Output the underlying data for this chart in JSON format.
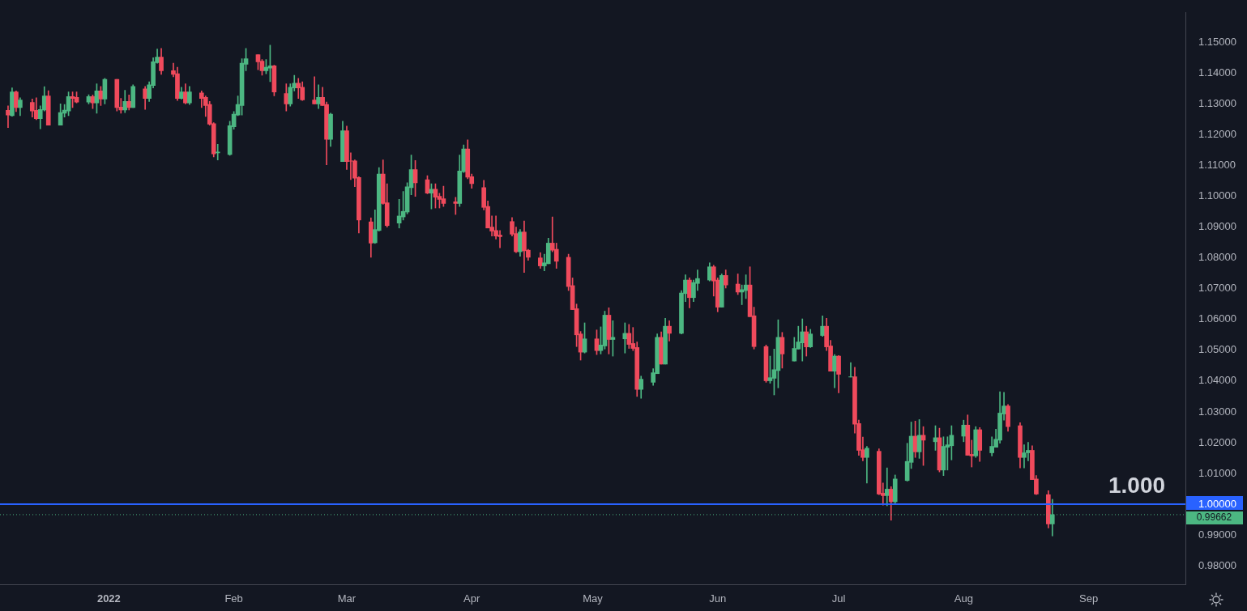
{
  "chart_data": {
    "type": "candlestick",
    "x": [
      "2021-12-07",
      "2021-12-08",
      "2021-12-09",
      "2021-12-10",
      "2021-12-13",
      "2021-12-14",
      "2021-12-15",
      "2021-12-16",
      "2021-12-17",
      "2021-12-20",
      "2021-12-21",
      "2021-12-22",
      "2021-12-23",
      "2021-12-24",
      "2021-12-27",
      "2021-12-28",
      "2021-12-29",
      "2021-12-30",
      "2021-12-31",
      "2022-01-03",
      "2022-01-04",
      "2022-01-05",
      "2022-01-06",
      "2022-01-07",
      "2022-01-10",
      "2022-01-11",
      "2022-01-12",
      "2022-01-13",
      "2022-01-14",
      "2022-01-17",
      "2022-01-18",
      "2022-01-19",
      "2022-01-20",
      "2022-01-21",
      "2022-01-24",
      "2022-01-25",
      "2022-01-26",
      "2022-01-27",
      "2022-01-28",
      "2022-01-31",
      "2022-02-01",
      "2022-02-02",
      "2022-02-03",
      "2022-02-04",
      "2022-02-07",
      "2022-02-08",
      "2022-02-09",
      "2022-02-10",
      "2022-02-11",
      "2022-02-14",
      "2022-02-15",
      "2022-02-16",
      "2022-02-17",
      "2022-02-18",
      "2022-02-21",
      "2022-02-22",
      "2022-02-23",
      "2022-02-24",
      "2022-02-25",
      "2022-02-28",
      "2022-03-01",
      "2022-03-02",
      "2022-03-03",
      "2022-03-04",
      "2022-03-07",
      "2022-03-08",
      "2022-03-09",
      "2022-03-10",
      "2022-03-11",
      "2022-03-14",
      "2022-03-15",
      "2022-03-16",
      "2022-03-17",
      "2022-03-18",
      "2022-03-21",
      "2022-03-22",
      "2022-03-23",
      "2022-03-24",
      "2022-03-25",
      "2022-03-28",
      "2022-03-29",
      "2022-03-30",
      "2022-03-31",
      "2022-04-01",
      "2022-04-04",
      "2022-04-05",
      "2022-04-06",
      "2022-04-07",
      "2022-04-08",
      "2022-04-11",
      "2022-04-12",
      "2022-04-13",
      "2022-04-14",
      "2022-04-15",
      "2022-04-18",
      "2022-04-19",
      "2022-04-20",
      "2022-04-21",
      "2022-04-22",
      "2022-04-25",
      "2022-04-26",
      "2022-04-27",
      "2022-04-28",
      "2022-04-29",
      "2022-05-02",
      "2022-05-03",
      "2022-05-04",
      "2022-05-05",
      "2022-05-06",
      "2022-05-09",
      "2022-05-10",
      "2022-05-11",
      "2022-05-12",
      "2022-05-13",
      "2022-05-16",
      "2022-05-17",
      "2022-05-18",
      "2022-05-19",
      "2022-05-20",
      "2022-05-23",
      "2022-05-24",
      "2022-05-25",
      "2022-05-26",
      "2022-05-27",
      "2022-05-30",
      "2022-05-31",
      "2022-06-01",
      "2022-06-02",
      "2022-06-03",
      "2022-06-06",
      "2022-06-07",
      "2022-06-08",
      "2022-06-09",
      "2022-06-10",
      "2022-06-13",
      "2022-06-14",
      "2022-06-15",
      "2022-06-16",
      "2022-06-17",
      "2022-06-20",
      "2022-06-21",
      "2022-06-22",
      "2022-06-23",
      "2022-06-24",
      "2022-06-27",
      "2022-06-28",
      "2022-06-29",
      "2022-06-30",
      "2022-07-01",
      "2022-07-04",
      "2022-07-05",
      "2022-07-06",
      "2022-07-07",
      "2022-07-08",
      "2022-07-11",
      "2022-07-12",
      "2022-07-13",
      "2022-07-14",
      "2022-07-15",
      "2022-07-18",
      "2022-07-19",
      "2022-07-20",
      "2022-07-21",
      "2022-07-22",
      "2022-07-25",
      "2022-07-26",
      "2022-07-27",
      "2022-07-28",
      "2022-07-29",
      "2022-08-01",
      "2022-08-02",
      "2022-08-03",
      "2022-08-04",
      "2022-08-05",
      "2022-08-08",
      "2022-08-09",
      "2022-08-10",
      "2022-08-11",
      "2022-08-12",
      "2022-08-15",
      "2022-08-16",
      "2022-08-17",
      "2022-08-18",
      "2022-08-19",
      "2022-08-22",
      "2022-08-23"
    ],
    "ohlc": [
      [
        1.1279,
        1.1294,
        1.1223,
        1.1264
      ],
      [
        1.1262,
        1.1352,
        1.126,
        1.1339
      ],
      [
        1.1339,
        1.1342,
        1.1275,
        1.1288
      ],
      [
        1.1288,
        1.132,
        1.1262,
        1.1313
      ],
      [
        1.1305,
        1.1316,
        1.1257,
        1.1277
      ],
      [
        1.1279,
        1.132,
        1.1249,
        1.1252
      ],
      [
        1.1252,
        1.1294,
        1.1219,
        1.1282
      ],
      [
        1.128,
        1.1356,
        1.1277,
        1.1326
      ],
      [
        1.1326,
        1.1343,
        1.1231,
        1.1231
      ],
      [
        1.1231,
        1.13,
        1.1231,
        1.1272
      ],
      [
        1.127,
        1.1298,
        1.1257,
        1.128
      ],
      [
        1.1277,
        1.1339,
        1.1262,
        1.1324
      ],
      [
        1.1324,
        1.1339,
        1.1288,
        1.1318
      ],
      [
        1.1321,
        1.1339,
        1.1303,
        1.1306
      ],
      [
        1.1306,
        1.133,
        1.13,
        1.1324
      ],
      [
        1.1324,
        1.1329,
        1.1285,
        1.1303
      ],
      [
        1.1303,
        1.1365,
        1.127,
        1.1342
      ],
      [
        1.1342,
        1.1357,
        1.1295,
        1.1316
      ],
      [
        1.1316,
        1.1383,
        1.13,
        1.138
      ],
      [
        1.138,
        1.138,
        1.1277,
        1.1288
      ],
      [
        1.129,
        1.1318,
        1.127,
        1.128
      ],
      [
        1.128,
        1.1344,
        1.1272,
        1.1308
      ],
      [
        1.1308,
        1.1329,
        1.128,
        1.1288
      ],
      [
        1.1288,
        1.1362,
        1.1288,
        1.1357
      ],
      [
        1.1349,
        1.1357,
        1.1282,
        1.1318
      ],
      [
        1.1318,
        1.1372,
        1.1308,
        1.1362
      ],
      [
        1.136,
        1.145,
        1.1352,
        1.1437
      ],
      [
        1.1434,
        1.1478,
        1.1432,
        1.1452
      ],
      [
        1.1452,
        1.148,
        1.1396,
        1.1408
      ],
      [
        1.1408,
        1.1432,
        1.1388,
        1.1396
      ],
      [
        1.1398,
        1.1419,
        1.1311,
        1.1318
      ],
      [
        1.1318,
        1.1354,
        1.1316,
        1.1339
      ],
      [
        1.1339,
        1.1365,
        1.13,
        1.1303
      ],
      [
        1.1303,
        1.1357,
        1.1298,
        1.1339
      ],
      [
        1.1336,
        1.1342,
        1.1288,
        1.1318
      ],
      [
        1.1321,
        1.1326,
        1.1259,
        1.1295
      ],
      [
        1.1298,
        1.1308,
        1.1231,
        1.1234
      ],
      [
        1.1236,
        1.1239,
        1.1128,
        1.1138
      ],
      [
        1.1141,
        1.1169,
        1.1118,
        1.1144
      ],
      [
        1.1136,
        1.1244,
        1.1133,
        1.1229
      ],
      [
        1.1226,
        1.1275,
        1.1218,
        1.1267
      ],
      [
        1.1264,
        1.1326,
        1.1262,
        1.1298
      ],
      [
        1.1295,
        1.1447,
        1.1264,
        1.1432
      ],
      [
        1.1429,
        1.148,
        1.1408,
        1.1447
      ],
      [
        1.146,
        1.146,
        1.1411,
        1.1437
      ],
      [
        1.1439,
        1.1444,
        1.1393,
        1.1408
      ],
      [
        1.1408,
        1.1444,
        1.1398,
        1.1419
      ],
      [
        1.1416,
        1.1491,
        1.1372,
        1.1424
      ],
      [
        1.1424,
        1.1426,
        1.1326,
        1.1339
      ],
      [
        1.1334,
        1.1365,
        1.1277,
        1.13
      ],
      [
        1.13,
        1.1365,
        1.1293,
        1.1354
      ],
      [
        1.1352,
        1.1393,
        1.1342,
        1.1367
      ],
      [
        1.1367,
        1.1383,
        1.1318,
        1.1352
      ],
      [
        1.1354,
        1.1372,
        1.1311,
        1.1313
      ],
      [
        1.1313,
        1.1388,
        1.13,
        1.13
      ],
      [
        1.13,
        1.1362,
        1.1285,
        1.1321
      ],
      [
        1.1321,
        1.1354,
        1.1295,
        1.1295
      ],
      [
        1.1298,
        1.1306,
        1.1102,
        1.1185
      ],
      [
        1.1185,
        1.127,
        1.1162,
        1.1267
      ],
      [
        1.1113,
        1.1244,
        1.1113,
        1.1213
      ],
      [
        1.1213,
        1.1228,
        1.1087,
        1.1113
      ],
      [
        1.1115,
        1.1141,
        1.1054,
        1.1114
      ],
      [
        1.1115,
        1.1118,
        1.1031,
        1.1059
      ],
      [
        1.1061,
        1.1064,
        1.0881,
        1.0923
      ],
      [
        1.0917,
        1.093,
        1.0802,
        1.0848
      ],
      [
        1.0849,
        1.0956,
        1.0847,
        1.0892
      ],
      [
        1.0889,
        1.1093,
        1.0887,
        1.1072
      ],
      [
        1.1072,
        1.1118,
        1.0974,
        1.0977
      ],
      [
        1.0979,
        1.1041,
        1.09,
        1.0905
      ],
      [
        1.0913,
        1.099,
        1.0897,
        1.0936
      ],
      [
        1.0933,
        1.1016,
        1.0923,
        1.0951
      ],
      [
        1.0949,
        1.1044,
        1.0943,
        1.1031
      ],
      [
        1.1028,
        1.1134,
        1.1005,
        1.1087
      ],
      [
        1.1087,
        1.1116,
        1.1,
        1.1044
      ],
      [
        1.1054,
        1.1067,
        1.1008,
        1.101
      ],
      [
        1.101,
        1.1041,
        1.0959,
        1.1023
      ],
      [
        1.1023,
        1.1041,
        1.0962,
        1.0997
      ],
      [
        1.1,
        1.101,
        1.0962,
        1.099
      ],
      [
        1.0992,
        1.1033,
        1.0967,
        1.0977
      ],
      [
        1.0982,
        1.0997,
        1.0941,
        1.0977
      ],
      [
        1.0977,
        1.1134,
        1.0967,
        1.1082
      ],
      [
        1.108,
        1.1167,
        1.1077,
        1.1154
      ],
      [
        1.1154,
        1.1183,
        1.1057,
        1.1062
      ],
      [
        1.1064,
        1.1072,
        1.1026,
        1.1041
      ],
      [
        1.1028,
        1.1052,
        1.0956,
        1.0964
      ],
      [
        1.0967,
        1.0985,
        1.0897,
        1.0897
      ],
      [
        1.09,
        1.0936,
        1.0871,
        1.0887
      ],
      [
        1.0889,
        1.0936,
        1.0861,
        1.0871
      ],
      [
        1.0874,
        1.0889,
        1.0833,
        1.0869
      ],
      [
        1.0918,
        1.0931,
        1.0871,
        1.0877
      ],
      [
        1.0879,
        1.09,
        1.0817,
        1.082
      ],
      [
        1.082,
        1.0892,
        1.0805,
        1.0884
      ],
      [
        1.0884,
        1.092,
        1.0753,
        1.0823
      ],
      [
        1.0825,
        1.0828,
        1.0792,
        1.0802
      ],
      [
        1.08,
        1.0817,
        1.0766,
        1.0774
      ],
      [
        1.0774,
        1.0812,
        1.0758,
        1.0784
      ],
      [
        1.0781,
        1.0864,
        1.0781,
        1.0848
      ],
      [
        1.0848,
        1.0933,
        1.082,
        1.0825
      ],
      [
        1.0828,
        1.0848,
        1.0766,
        1.0789
      ],
      [
        1.0802,
        1.0812,
        1.0694,
        1.0707
      ],
      [
        1.071,
        1.0735,
        1.0632,
        1.0632
      ],
      [
        1.0635,
        1.065,
        1.0512,
        1.055
      ],
      [
        1.0553,
        1.0561,
        1.0468,
        1.0494
      ],
      [
        1.0494,
        1.0589,
        1.0491,
        1.0537
      ],
      [
        1.0537,
        1.0566,
        1.0486,
        1.0499
      ],
      [
        1.0499,
        1.0576,
        1.0488,
        1.0517
      ],
      [
        1.0514,
        1.0627,
        1.0504,
        1.0614
      ],
      [
        1.0614,
        1.0638,
        1.0488,
        1.0535
      ],
      [
        1.0535,
        1.0596,
        1.0481,
        1.0542
      ],
      [
        1.0537,
        1.0589,
        1.0491,
        1.0555
      ],
      [
        1.0555,
        1.0584,
        1.0506,
        1.0519
      ],
      [
        1.0522,
        1.0574,
        1.0499,
        1.0506
      ],
      [
        1.0509,
        1.0527,
        1.035,
        1.0373
      ],
      [
        1.0373,
        1.0416,
        1.0344,
        1.0406
      ],
      [
        1.0396,
        1.044,
        1.0386,
        1.0427
      ],
      [
        1.0424,
        1.0553,
        1.0424,
        1.0542
      ],
      [
        1.0542,
        1.056,
        1.0455,
        1.0455
      ],
      [
        1.0455,
        1.0604,
        1.0455,
        1.0578
      ],
      [
        1.0578,
        1.0596,
        1.053,
        1.0555
      ],
      [
        1.0555,
        1.0694,
        1.0553,
        1.0686
      ],
      [
        1.0684,
        1.0745,
        1.0658,
        1.0728
      ],
      [
        1.0728,
        1.0735,
        1.0638,
        1.0671
      ],
      [
        1.0671,
        1.0728,
        1.0658,
        1.072
      ],
      [
        1.0717,
        1.0761,
        1.0694,
        1.0733
      ],
      [
        1.0728,
        1.0784,
        1.0725,
        1.0771
      ],
      [
        1.0771,
        1.0776,
        1.0676,
        1.0725
      ],
      [
        1.0728,
        1.0735,
        1.0625,
        1.064
      ],
      [
        1.064,
        1.0748,
        1.064,
        1.0743
      ],
      [
        1.0743,
        1.0761,
        1.0702,
        1.0712
      ],
      [
        1.0715,
        1.0748,
        1.0681,
        1.0689
      ],
      [
        1.0689,
        1.0712,
        1.0648,
        1.0697
      ],
      [
        1.0694,
        1.0745,
        1.0668,
        1.0712
      ],
      [
        1.0712,
        1.0771,
        1.0609,
        1.0609
      ],
      [
        1.0612,
        1.064,
        1.0504,
        1.0512
      ],
      [
        1.0512,
        1.0517,
        1.0396,
        1.0401
      ],
      [
        1.0401,
        1.0481,
        1.0393,
        1.0411
      ],
      [
        1.0409,
        1.0504,
        1.0355,
        1.0437
      ],
      [
        1.0434,
        1.0599,
        1.0378,
        1.0542
      ],
      [
        1.0542,
        1.0558,
        1.0442,
        1.0488
      ],
      [
        1.0465,
        1.0542,
        1.0465,
        1.0506
      ],
      [
        1.0504,
        1.0578,
        1.0504,
        1.0527
      ],
      [
        1.0524,
        1.0602,
        1.0465,
        1.056
      ],
      [
        1.056,
        1.0578,
        1.0481,
        1.0511
      ],
      [
        1.0511,
        1.0568,
        1.0509,
        1.0553
      ],
      [
        1.0548,
        1.0612,
        1.0545,
        1.0578
      ],
      [
        1.0578,
        1.0604,
        1.0499,
        1.0511
      ],
      [
        1.0514,
        1.0532,
        1.0432,
        1.0432
      ],
      [
        1.0432,
        1.0486,
        1.0378,
        1.0481
      ],
      [
        1.0481,
        1.0483,
        1.0362,
        1.0422
      ],
      [
        1.0413,
        1.046,
        1.0413,
        1.0414
      ],
      [
        1.0414,
        1.0445,
        1.0231,
        1.026
      ],
      [
        1.0262,
        1.0273,
        1.0159,
        1.0175
      ],
      [
        1.0177,
        1.0218,
        1.0141,
        1.0152
      ],
      [
        1.0152,
        1.0188,
        1.0069,
        1.0182
      ],
      [
        1.0172,
        1.018,
        1.0031,
        1.0033
      ],
      [
        1.0036,
        1.0069,
        0.9997,
        1.0028
      ],
      [
        1.0028,
        1.0118,
        0.9995,
        1.0049
      ],
      [
        1.0049,
        1.0057,
        0.9948,
        1.0008
      ],
      [
        1.0008,
        1.0095,
        1.0003,
        1.0082
      ],
      [
        1.0077,
        1.0198,
        1.0075,
        1.0139
      ],
      [
        1.0136,
        1.0267,
        1.0116,
        1.0221
      ],
      [
        1.0221,
        1.027,
        1.0152,
        1.017
      ],
      [
        1.017,
        1.0275,
        1.0149,
        1.0224
      ],
      [
        1.0224,
        1.0252,
        1.0126,
        1.0208
      ],
      [
        1.0203,
        1.0255,
        1.0175,
        1.0216
      ],
      [
        1.0216,
        1.0247,
        1.0105,
        1.0111
      ],
      [
        1.0111,
        1.0219,
        1.0093,
        1.0188
      ],
      [
        1.0185,
        1.0219,
        1.0111,
        1.0193
      ],
      [
        1.019,
        1.0255,
        1.0144,
        1.0224
      ],
      [
        1.0221,
        1.0273,
        1.0203,
        1.0257
      ],
      [
        1.0257,
        1.029,
        1.0159,
        1.0159
      ],
      [
        1.0162,
        1.0208,
        1.0121,
        1.0157
      ],
      [
        1.0157,
        1.0252,
        1.0152,
        1.0242
      ],
      [
        1.0242,
        1.0249,
        1.0139,
        1.0175
      ],
      [
        1.0167,
        1.0219,
        1.0157,
        1.0188
      ],
      [
        1.0185,
        1.0244,
        1.0185,
        1.0211
      ],
      [
        1.0208,
        1.0365,
        1.0198,
        1.0296
      ],
      [
        1.0293,
        1.0363,
        1.0273,
        1.0319
      ],
      [
        1.0319,
        1.0324,
        1.0237,
        1.0252
      ],
      [
        1.0255,
        1.0265,
        1.0118,
        1.0152
      ],
      [
        1.0152,
        1.0193,
        1.0118,
        1.0167
      ],
      [
        1.0167,
        1.0201,
        1.0141,
        1.0175
      ],
      [
        1.0175,
        1.019,
        1.008,
        1.008
      ],
      [
        1.0082,
        1.0093,
        1.0031,
        1.0033
      ],
      [
        1.0031,
        1.0044,
        0.9923,
        0.9936
      ],
      [
        0.9936,
        1.0016,
        0.9897,
        0.99662
      ]
    ],
    "colors": [
      "#f04a5c",
      "#4cb782",
      "#f04a5c",
      "#4cb782",
      "#f04a5c",
      "#f04a5c",
      "#4cb782",
      "#4cb782",
      "#f04a5c",
      "#4cb782",
      "#4cb782",
      "#4cb782",
      "#f04a5c",
      "#f04a5c",
      "#4cb782",
      "#f04a5c",
      "#4cb782",
      "#f04a5c",
      "#4cb782",
      "#f04a5c",
      "#f04a5c",
      "#4cb782",
      "#f04a5c",
      "#4cb782",
      "#f04a5c",
      "#4cb782",
      "#4cb782",
      "#4cb782",
      "#f04a5c",
      "#f04a5c",
      "#f04a5c",
      "#4cb782",
      "#f04a5c",
      "#4cb782",
      "#f04a5c",
      "#f04a5c",
      "#f04a5c",
      "#f04a5c",
      "#4cb782",
      "#4cb782",
      "#4cb782",
      "#4cb782",
      "#4cb782",
      "#4cb782",
      "#f04a5c",
      "#f04a5c",
      "#4cb782",
      "#4cb782",
      "#f04a5c",
      "#f04a5c",
      "#4cb782",
      "#4cb782",
      "#f04a5c",
      "#f04a5c",
      "#f04a5c",
      "#4cb782",
      "#f04a5c",
      "#f04a5c",
      "#4cb782",
      "#4cb782",
      "#f04a5c",
      "#f04a5c",
      "#f04a5c",
      "#f04a5c",
      "#f04a5c",
      "#4cb782",
      "#4cb782",
      "#f04a5c",
      "#f04a5c",
      "#4cb782",
      "#4cb782",
      "#4cb782",
      "#4cb782",
      "#f04a5c",
      "#f04a5c",
      "#4cb782",
      "#f04a5c",
      "#f04a5c",
      "#f04a5c",
      "#f04a5c",
      "#4cb782",
      "#4cb782",
      "#f04a5c",
      "#f04a5c",
      "#f04a5c",
      "#f04a5c",
      "#f04a5c",
      "#f04a5c",
      "#f04a5c",
      "#f04a5c",
      "#f04a5c",
      "#4cb782",
      "#f04a5c",
      "#f04a5c",
      "#f04a5c",
      "#4cb782",
      "#4cb782",
      "#f04a5c",
      "#f04a5c",
      "#f04a5c",
      "#f04a5c",
      "#f04a5c",
      "#f04a5c",
      "#4cb782",
      "#f04a5c",
      "#4cb782",
      "#4cb782",
      "#f04a5c",
      "#4cb782",
      "#4cb782",
      "#f04a5c",
      "#f04a5c",
      "#f04a5c",
      "#4cb782",
      "#4cb782",
      "#4cb782",
      "#f04a5c",
      "#4cb782",
      "#f04a5c",
      "#4cb782",
      "#4cb782",
      "#f04a5c",
      "#4cb782",
      "#4cb782",
      "#4cb782",
      "#f04a5c",
      "#f04a5c",
      "#4cb782",
      "#f04a5c",
      "#f04a5c",
      "#4cb782",
      "#4cb782",
      "#f04a5c",
      "#f04a5c",
      "#f04a5c",
      "#4cb782",
      "#4cb782",
      "#4cb782",
      "#f04a5c",
      "#4cb782",
      "#4cb782",
      "#4cb782",
      "#f04a5c",
      "#4cb782",
      "#4cb782",
      "#f04a5c",
      "#f04a5c",
      "#4cb782",
      "#f04a5c",
      "#4cb782",
      "#f04a5c",
      "#f04a5c",
      "#f04a5c",
      "#4cb782",
      "#f04a5c",
      "#f04a5c",
      "#4cb782",
      "#f04a5c",
      "#4cb782",
      "#4cb782",
      "#4cb782",
      "#f04a5c",
      "#4cb782",
      "#f04a5c",
      "#4cb782",
      "#f04a5c",
      "#4cb782",
      "#4cb782",
      "#4cb782",
      "#4cb782",
      "#f04a5c",
      "#f04a5c",
      "#4cb782",
      "#f04a5c",
      "#4cb782",
      "#4cb782",
      "#4cb782",
      "#4cb782",
      "#f04a5c",
      "#f04a5c",
      "#4cb782",
      "#4cb782",
      "#f04a5c",
      "#f04a5c",
      "#f04a5c",
      "#4cb782"
    ],
    "xlim": [
      "2021-12-05",
      "2022-09-25"
    ],
    "xticks": [
      {
        "value": "2022-01-01",
        "label": "2022"
      },
      {
        "value": "2022-02-01",
        "label": "Feb"
      },
      {
        "value": "2022-03-01",
        "label": "Mar"
      },
      {
        "value": "2022-04-01",
        "label": "Apr"
      },
      {
        "value": "2022-05-01",
        "label": "May"
      },
      {
        "value": "2022-06-01",
        "label": "Jun"
      },
      {
        "value": "2022-07-01",
        "label": "Jul"
      },
      {
        "value": "2022-08-01",
        "label": "Aug"
      },
      {
        "value": "2022-09-01",
        "label": "Sep"
      }
    ],
    "ylim": [
      0.974,
      1.1596
    ],
    "yticks": [
      {
        "value": 0.98,
        "label": "0.98000"
      },
      {
        "value": 0.99,
        "label": "0.99000"
      },
      {
        "value": 1.0,
        "label": "1.00000"
      },
      {
        "value": 1.01,
        "label": "1.01000"
      },
      {
        "value": 1.02,
        "label": "1.02000"
      },
      {
        "value": 1.03,
        "label": "1.03000"
      },
      {
        "value": 1.04,
        "label": "1.04000"
      },
      {
        "value": 1.05,
        "label": "1.05000"
      },
      {
        "value": 1.06,
        "label": "1.06000"
      },
      {
        "value": 1.07,
        "label": "1.07000"
      },
      {
        "value": 1.08,
        "label": "1.08000"
      },
      {
        "value": 1.09,
        "label": "1.09000"
      },
      {
        "value": 1.1,
        "label": "1.10000"
      },
      {
        "value": 1.11,
        "label": "1.11000"
      },
      {
        "value": 1.12,
        "label": "1.12000"
      },
      {
        "value": 1.13,
        "label": "1.13000"
      },
      {
        "value": 1.14,
        "label": "1.14000"
      },
      {
        "value": 1.15,
        "label": "1.15000"
      }
    ],
    "ref_lines": [
      {
        "axis": "y",
        "value": 1.0,
        "label": "1.000",
        "color": "#2962ff",
        "line_style": "solid"
      },
      {
        "axis": "y",
        "value": 0.99662,
        "label": "0.99662",
        "color": "#4cb782",
        "line_style": "dotted"
      }
    ]
  }
}
